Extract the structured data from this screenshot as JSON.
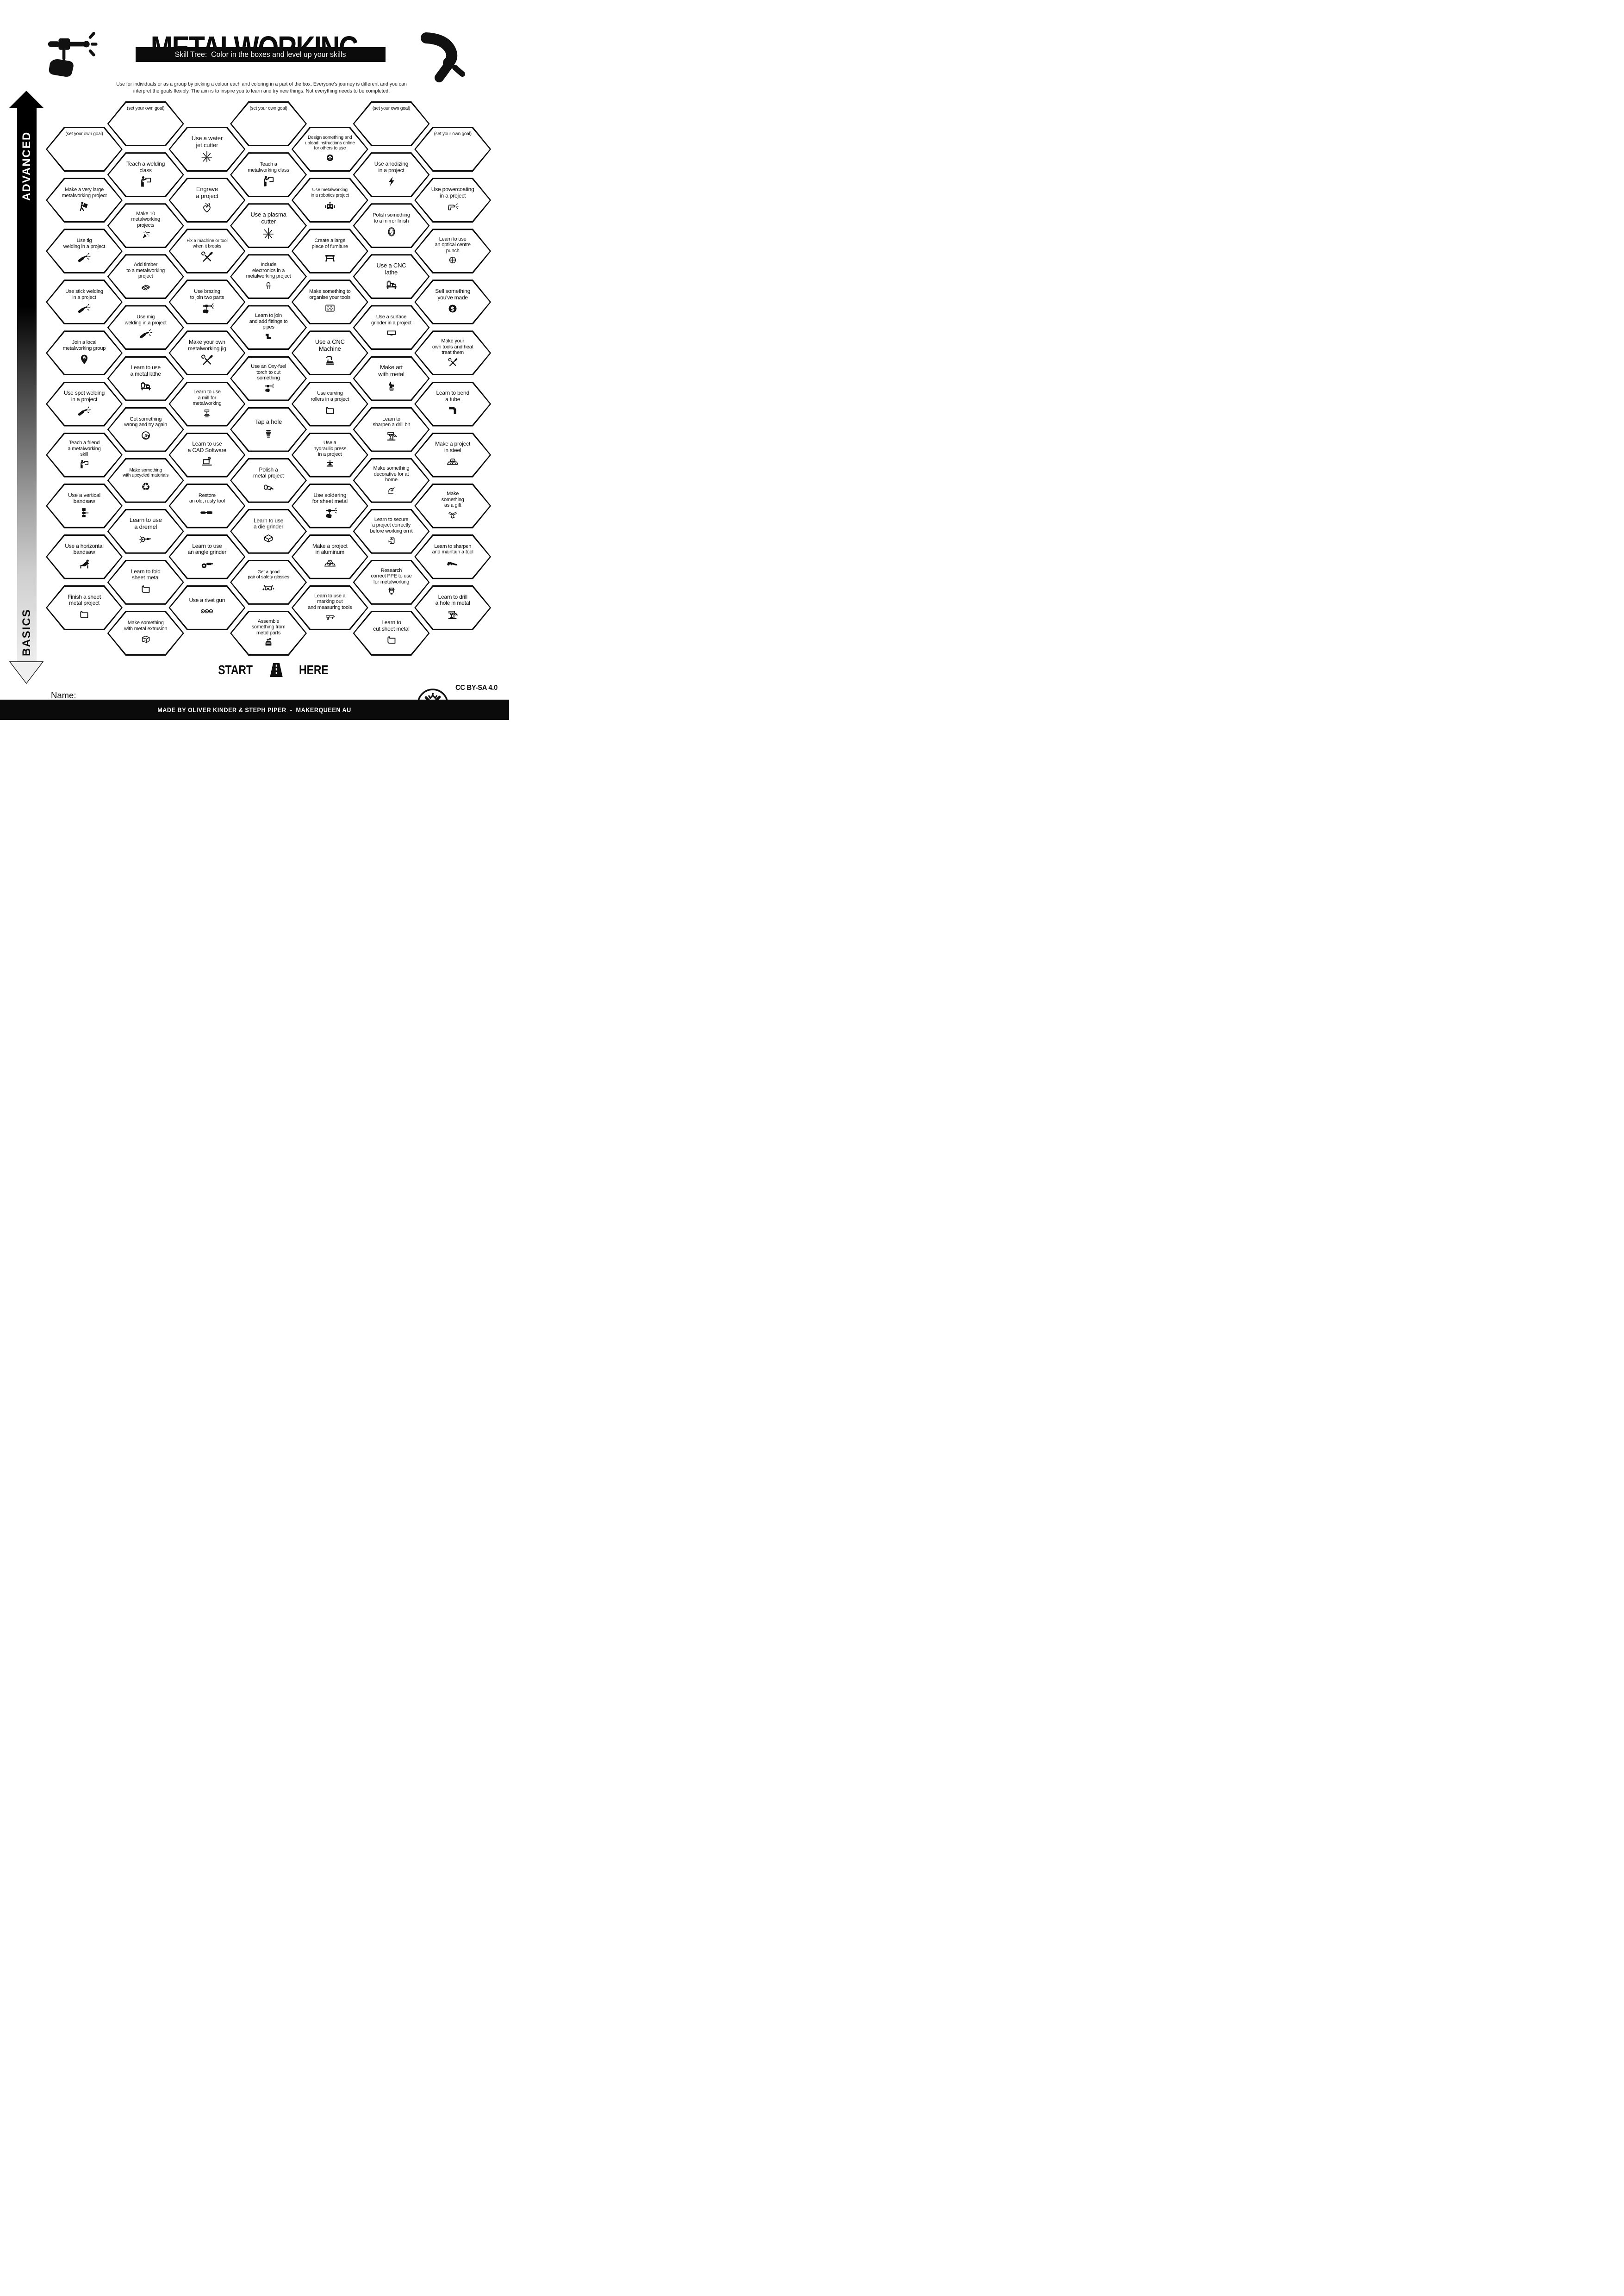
{
  "header": {
    "title": "METALWORKING",
    "subtitle": "Skill Tree:  Color in the boxes and level up your skills",
    "description": "Use for individuals or as a group by picking a colour each and coloring in a part of the box.  Everyone's journey is different and you can\ninterpret the goals flexibly.  The aim is to inspire you to learn and try new things. Not everything needs to be completed.",
    "left_icon": "hand-welding-torch",
    "right_icon": "mig-welding-gun"
  },
  "axis": {
    "top": "ADVANCED",
    "bottom": "BASICS"
  },
  "start": {
    "word_left": "START",
    "word_right": "HERE",
    "icon": "road"
  },
  "name_field": {
    "label": "Name:",
    "value": ""
  },
  "license": "CC BY-SA 4.0",
  "footer": {
    "credit": "MADE BY OLIVER KINDER & STEPH PIPER  -  MAKERQUEEN AU",
    "logo": "makerqueen-logo"
  },
  "colors": {
    "ink": "#0b0b0b",
    "paper": "#ffffff"
  },
  "honeycomb": {
    "columns": [
      {
        "hexes": [
          {
            "label": "(set your own goal)",
            "icon": null,
            "goal": true
          },
          {
            "label": "Make a very large\nmetalworking project",
            "icon": "person-carrying"
          },
          {
            "label": "Use tig\nwelding in a project",
            "icon": "welding-torch"
          },
          {
            "label": "Use stick welding\nin a project",
            "icon": "welding-torch"
          },
          {
            "label": "Join a local\nmetalworking group",
            "icon": "map-pin"
          },
          {
            "label": "Use spot welding\nin a project",
            "icon": "welding-torch"
          },
          {
            "label": "Teach a friend\na metalworking\nskill",
            "icon": "teacher-board"
          },
          {
            "label": "Use a vertical\nbandsaw",
            "icon": "vertical-bandsaw"
          },
          {
            "label": "Use a horizontal\nbandsaw",
            "icon": "horizontal-bandsaw"
          },
          {
            "label": "Finish a sheet\nmetal project",
            "icon": "sheet-metal"
          }
        ]
      },
      {
        "hexes": [
          {
            "label": "(set your own goal)",
            "icon": null,
            "goal": true
          },
          {
            "label": "Teach a welding\nclass",
            "icon": "teacher-board"
          },
          {
            "label": "Make 10\nmetalworking\nprojects",
            "icon": "party-popper"
          },
          {
            "label": "Add timber\nto a metalworking\nproject",
            "icon": "timber-planks"
          },
          {
            "label": "Use mig\nwelding in a project",
            "icon": "welding-torch"
          },
          {
            "label": "Learn to use\na metal lathe",
            "icon": "metal-lathe"
          },
          {
            "label": "Get something\nwrong and try again",
            "icon": "facepalm"
          },
          {
            "label": "Make something\nwith upcycled materials",
            "icon": "recycle"
          },
          {
            "label": "Learn to use\na dremel",
            "icon": "dremel"
          },
          {
            "label": "Learn to fold\nsheet metal",
            "icon": "sheet-metal"
          },
          {
            "label": "Make something\nwith metal extrusion",
            "icon": "metal-extrusion"
          }
        ]
      },
      {
        "hexes": [
          {
            "label": "Use a water\njet cutter",
            "icon": "spark-burst"
          },
          {
            "label": "Engrave\na project",
            "icon": "engrave-heart"
          },
          {
            "label": "Fix a machine or tool\nwhen it breaks",
            "icon": "crossed-tools"
          },
          {
            "label": "Use brazing\nto join two parts",
            "icon": "hand-torch"
          },
          {
            "label": "Make your own\nmetalworking jig",
            "icon": "crossed-tools"
          },
          {
            "label": "Learn to use\na mill for\nmetalworking",
            "icon": "mill"
          },
          {
            "label": "Learn to use\na CAD Software",
            "icon": "cad-laptop"
          },
          {
            "label": "Restore\nan old, rusty tool",
            "icon": "rusty-tool"
          },
          {
            "label": "Learn to use\nan angle grinder",
            "icon": "angle-grinder"
          },
          {
            "label": "Use a rivet gun",
            "icon": "rivet-gun"
          }
        ]
      },
      {
        "hexes": [
          {
            "label": "(set your own goal)",
            "icon": null,
            "goal": true
          },
          {
            "label": "Teach a\nmetalworking class",
            "icon": "teacher-board"
          },
          {
            "label": "Use a plasma\ncutter",
            "icon": "spark-burst"
          },
          {
            "label": "Include\nelectronics in a\nmetalworking project",
            "icon": "led"
          },
          {
            "label": "Learn to join\nand add fittings to\npipes",
            "icon": "pipe-fittings"
          },
          {
            "label": "Use an Oxy-fuel\ntorch to cut\nsomething",
            "icon": "hand-torch"
          },
          {
            "label": "Tap a hole",
            "icon": "tap-thread"
          },
          {
            "label": "Polish a\nmetal project",
            "icon": "polisher"
          },
          {
            "label": "Learn to use\na die grinder",
            "icon": "die-grinder"
          },
          {
            "label": "Get a good\npair of safety glasses",
            "icon": "safety-glasses"
          },
          {
            "label": "Assemble\nsomething from\nmetal parts",
            "icon": "toolbox"
          }
        ]
      },
      {
        "hexes": [
          {
            "label": "Design something and\nupload instructions online\nfor others to use",
            "icon": "upload"
          },
          {
            "label": "Use metalworking\nin a robotics project",
            "icon": "robot"
          },
          {
            "label": "Create a large\npiece of furniture",
            "icon": "furniture-bench"
          },
          {
            "label": "Make something to\norganise your tools",
            "icon": "pegboard"
          },
          {
            "label": "Use a CNC\nMachine",
            "icon": "cnc-router"
          },
          {
            "label": "Use curving\nrollers in a project",
            "icon": "sheet-metal"
          },
          {
            "label": "Use a\nhydraulic press\nin a project",
            "icon": "hydraulic-press"
          },
          {
            "label": "Use soldering\nfor sheet metal",
            "icon": "hand-torch"
          },
          {
            "label": "Make a project\nin aluminum",
            "icon": "metal-ingots"
          },
          {
            "label": "Learn to use a\nmarking out\nand measuring tools",
            "icon": "caliper"
          }
        ]
      },
      {
        "hexes": [
          {
            "label": "(set your own goal)",
            "icon": null,
            "goal": true
          },
          {
            "label": "Use anodizing\nin a project",
            "icon": "lightning-bolt"
          },
          {
            "label": "Polish something\nto a mirror finish",
            "icon": "mirror"
          },
          {
            "label": "Use a CNC\nlathe",
            "icon": "metal-lathe"
          },
          {
            "label": "Use a surface\ngrinder in a project",
            "icon": "surface-grinder"
          },
          {
            "label": "Make art\nwith metal",
            "icon": "art-flame"
          },
          {
            "label": "Learn to\nsharpen a drill bit",
            "icon": "drill-press"
          },
          {
            "label": "Make something\ndecorative for at\nhome",
            "icon": "decorative-scroll"
          },
          {
            "label": "Learn to secure\na project correctly\nbefore working on it",
            "icon": "g-clamp"
          },
          {
            "label": "Research\ncorrect PPE to use\nfor metalworking",
            "icon": "welding-helmet"
          },
          {
            "label": "Learn to\ncut sheet metal",
            "icon": "sheet-metal"
          }
        ]
      },
      {
        "hexes": [
          {
            "label": "(set your own goal)",
            "icon": null,
            "goal": true
          },
          {
            "label": "Use powercoating\nin a project",
            "icon": "spray-gun"
          },
          {
            "label": "Learn to use\nan optical centre\npunch",
            "icon": "optical-punch"
          },
          {
            "label": "Sell something\nyou've made",
            "icon": "dollar"
          },
          {
            "label": "Make your\nown tools and heat\ntreat them",
            "icon": "crossed-tools"
          },
          {
            "label": "Learn to bend\na tube",
            "icon": "tube-bend"
          },
          {
            "label": "Make a project\nin steel",
            "icon": "metal-ingots"
          },
          {
            "label": "Make\nsomething\nas a gift",
            "icon": "gift-bow"
          },
          {
            "label": "Learn to sharpen\nand maintain a tool",
            "icon": "hand-saw"
          },
          {
            "label": "Learn to drill\na hole in metal",
            "icon": "drill-press"
          }
        ]
      }
    ]
  }
}
